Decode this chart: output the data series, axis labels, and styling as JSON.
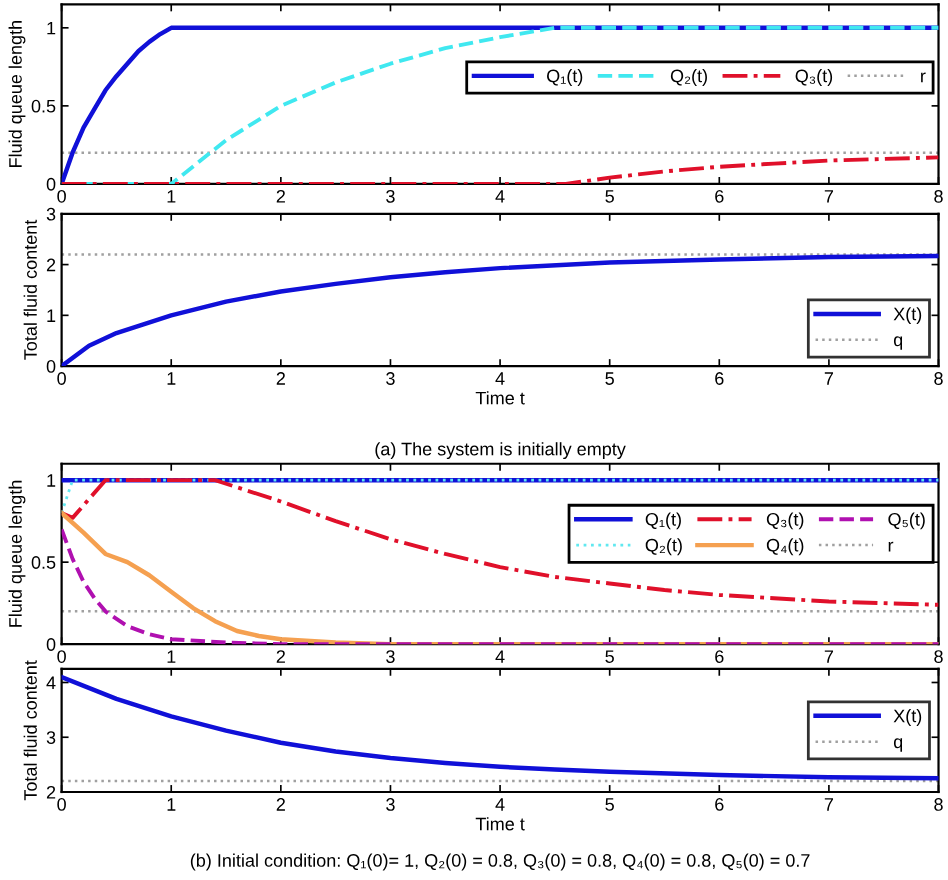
{
  "chart_data": [
    {
      "type": "line",
      "ylabel": "Fluid queue length",
      "xlim": [
        0,
        8
      ],
      "ylim": [
        0,
        1.15
      ],
      "xticks": [
        0,
        1,
        2,
        3,
        4,
        5,
        6,
        7,
        8
      ],
      "yticks": [
        0,
        0.5,
        1
      ],
      "grid": false,
      "legend": "right",
      "series": [
        {
          "name": "Q₁(t)",
          "color": "#1010d8",
          "line_style": "solid",
          "x": [
            0,
            0.1,
            0.2,
            0.3,
            0.4,
            0.5,
            0.6,
            0.7,
            0.8,
            0.9,
            1,
            8
          ],
          "values": [
            0,
            0.2,
            0.36,
            0.48,
            0.6,
            0.69,
            0.77,
            0.85,
            0.91,
            0.96,
            1,
            1
          ]
        },
        {
          "name": "Q₂(t)",
          "color": "#40e8f0",
          "line_style": "dashed",
          "x": [
            0,
            1,
            1.5,
            2,
            2.5,
            3,
            3.5,
            4,
            4.5,
            8
          ],
          "values": [
            0,
            0,
            0.28,
            0.5,
            0.65,
            0.77,
            0.87,
            0.94,
            1,
            1
          ]
        },
        {
          "name": "Q₃(t)",
          "color": "#e0102a",
          "line_style": "dashdot",
          "x": [
            0,
            4.6,
            5,
            5.5,
            6,
            6.5,
            7,
            7.5,
            8
          ],
          "values": [
            0,
            0,
            0.04,
            0.08,
            0.11,
            0.13,
            0.15,
            0.16,
            0.17
          ]
        }
      ],
      "ref_lines": [
        {
          "axis": "y",
          "value": 0.2,
          "label": "r",
          "color": "#a0a0a0",
          "line_style": "dotted"
        }
      ]
    },
    {
      "type": "line",
      "ylabel": "Total fluid content",
      "xlabel": "Time t",
      "xlim": [
        0,
        8
      ],
      "ylim": [
        0,
        3
      ],
      "xticks": [
        0,
        1,
        2,
        3,
        4,
        5,
        6,
        7,
        8
      ],
      "yticks": [
        0,
        1,
        2,
        3
      ],
      "grid": false,
      "legend": "lower right",
      "series": [
        {
          "name": "X(t)",
          "color": "#1010d8",
          "line_style": "solid",
          "x": [
            0,
            0.25,
            0.5,
            1,
            1.5,
            2,
            2.5,
            3,
            3.5,
            4,
            5,
            6,
            7,
            8
          ],
          "values": [
            0,
            0.4,
            0.65,
            1.0,
            1.27,
            1.47,
            1.62,
            1.75,
            1.85,
            1.93,
            2.04,
            2.1,
            2.15,
            2.17
          ]
        }
      ],
      "ref_lines": [
        {
          "axis": "y",
          "value": 2.2,
          "label": "q",
          "color": "#a0a0a0",
          "line_style": "dotted"
        }
      ],
      "annotations": [
        "(a) The system is initially empty"
      ]
    },
    {
      "type": "line",
      "ylabel": "Fluid queue length",
      "xlim": [
        0,
        8
      ],
      "ylim": [
        0,
        1.1
      ],
      "xticks": [
        0,
        1,
        2,
        3,
        4,
        5,
        6,
        7,
        8
      ],
      "yticks": [
        0,
        0.5,
        1
      ],
      "grid": false,
      "legend": "top right",
      "series": [
        {
          "name": "Q₁(t)",
          "color": "#1010d8",
          "line_style": "solid",
          "x": [
            0,
            8
          ],
          "values": [
            1,
            1
          ]
        },
        {
          "name": "Q₂(t)",
          "color": "#60e8f0",
          "line_style": "dotted",
          "x": [
            0,
            0.1,
            8
          ],
          "values": [
            0.8,
            1,
            1
          ]
        },
        {
          "name": "Q₃(t)",
          "color": "#e0102a",
          "line_style": "dashdot",
          "x": [
            0,
            0.1,
            0.4,
            1.4,
            2,
            2.5,
            3,
            3.5,
            4,
            4.5,
            5,
            5.5,
            6,
            6.5,
            7,
            7.5,
            8
          ],
          "values": [
            0.8,
            0.77,
            1,
            1,
            0.87,
            0.75,
            0.64,
            0.55,
            0.47,
            0.41,
            0.37,
            0.33,
            0.3,
            0.28,
            0.26,
            0.25,
            0.24
          ]
        },
        {
          "name": "Q₄(t)",
          "color": "#f5a050",
          "line_style": "solid",
          "x": [
            0,
            0.2,
            0.4,
            0.6,
            0.8,
            1,
            1.2,
            1.4,
            1.6,
            1.8,
            2,
            2.5,
            3,
            8
          ],
          "values": [
            0.8,
            0.68,
            0.55,
            0.5,
            0.42,
            0.32,
            0.22,
            0.14,
            0.08,
            0.05,
            0.03,
            0.01,
            0,
            0
          ]
        },
        {
          "name": "Q₅(t)",
          "color": "#b010b0",
          "line_style": "dashed",
          "x": [
            0,
            0.1,
            0.2,
            0.3,
            0.4,
            0.6,
            0.8,
            1,
            1.5,
            2,
            8
          ],
          "values": [
            0.7,
            0.52,
            0.38,
            0.28,
            0.2,
            0.11,
            0.06,
            0.03,
            0.01,
            0,
            0
          ]
        }
      ],
      "ref_lines": [
        {
          "axis": "y",
          "value": 0.2,
          "label": "r",
          "color": "#a0a0a0",
          "line_style": "dotted"
        }
      ]
    },
    {
      "type": "line",
      "ylabel": "Total fluid content",
      "xlabel": "Time t",
      "xlim": [
        0,
        8
      ],
      "ylim": [
        2,
        4.25
      ],
      "xticks": [
        0,
        1,
        2,
        3,
        4,
        5,
        6,
        7,
        8
      ],
      "yticks": [
        2,
        3,
        4
      ],
      "grid": false,
      "legend": "right",
      "series": [
        {
          "name": "X(t)",
          "color": "#1010d8",
          "line_style": "solid",
          "x": [
            0,
            0.5,
            1,
            1.5,
            2,
            2.5,
            3,
            3.5,
            4,
            4.5,
            5,
            6,
            7,
            8
          ],
          "values": [
            4.1,
            3.7,
            3.38,
            3.12,
            2.9,
            2.74,
            2.62,
            2.53,
            2.46,
            2.41,
            2.37,
            2.31,
            2.27,
            2.25
          ]
        }
      ],
      "ref_lines": [
        {
          "axis": "y",
          "value": 2.2,
          "label": "q",
          "color": "#a0a0a0",
          "line_style": "dotted"
        }
      ],
      "annotations": [
        "(b) Initial condition: Q₁(0)= 1, Q₂(0) = 0.8, Q₃(0) = 0.8, Q₄(0) = 0.8, Q₅(0) = 0.7"
      ]
    }
  ]
}
